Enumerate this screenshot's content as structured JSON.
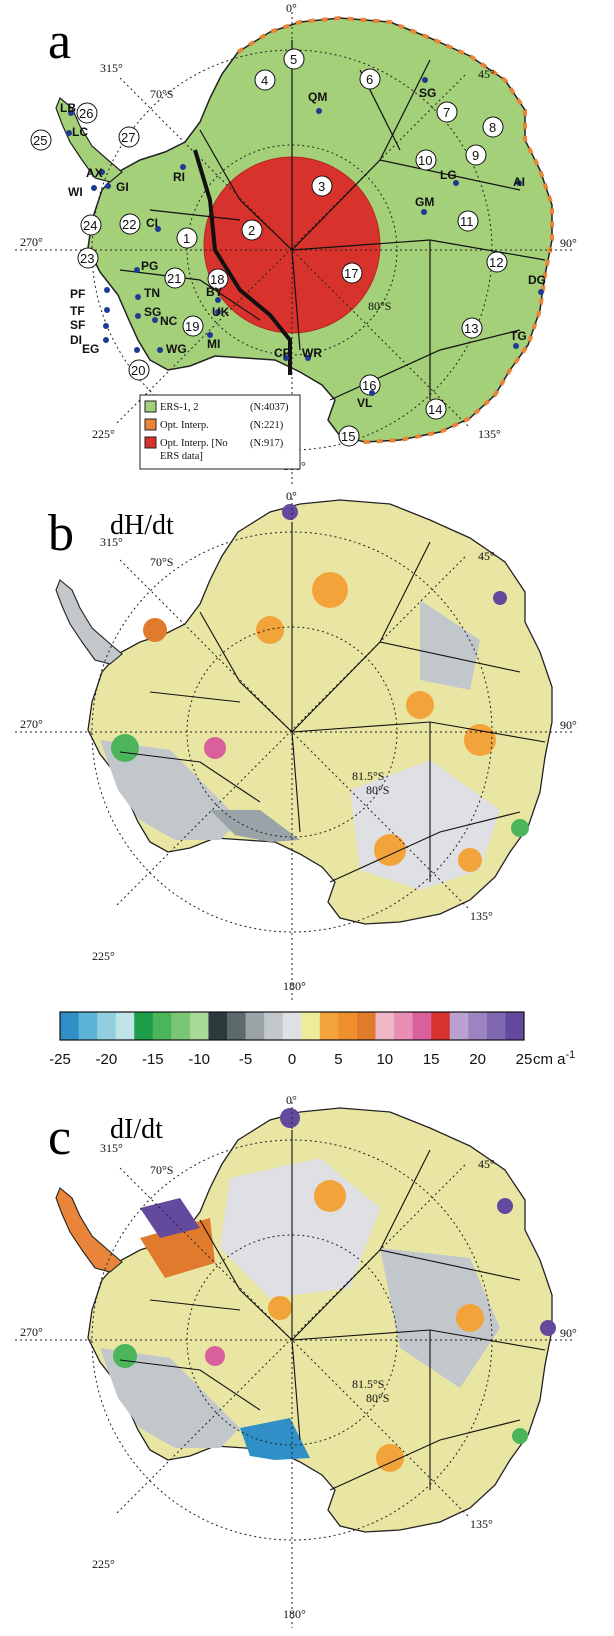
{
  "panels": {
    "a": {
      "label": "a"
    },
    "b": {
      "label": "b",
      "quantity": "dH/dt"
    },
    "c": {
      "label": "c",
      "quantity": "dI/dt"
    }
  },
  "graticule": {
    "deg_0": "0°",
    "deg_45": "45°",
    "deg_90": "90°",
    "deg_135": "135°",
    "deg_180": "180°",
    "deg_225": "225°",
    "deg_270": "270°",
    "deg_315": "315°",
    "lat_70": "70°S",
    "lat_80": "80°S",
    "lat_815": "81.5°S"
  },
  "legend": {
    "items": [
      {
        "label": "ERS-1, 2",
        "count": "(N:4037)",
        "color": "#a4d07a"
      },
      {
        "label": "Opt. Interp.",
        "count": "(N:221)",
        "color": "#e8853a"
      },
      {
        "label": "Opt. Interp. [No",
        "label2": "ERS data]",
        "count": "(N:917)",
        "color": "#d8322c"
      }
    ]
  },
  "basins": [
    "1",
    "2",
    "3",
    "4",
    "5",
    "6",
    "7",
    "8",
    "9",
    "10",
    "11",
    "12",
    "13",
    "14",
    "15",
    "16",
    "17",
    "18",
    "19",
    "20",
    "21",
    "22",
    "23",
    "24",
    "25",
    "26",
    "27"
  ],
  "sites": [
    "QM",
    "SG",
    "LG",
    "AI",
    "GM",
    "DG",
    "TG",
    "LB",
    "LC",
    "AX",
    "GI",
    "WI",
    "RI",
    "CI",
    "PG",
    "PF",
    "TN",
    "TF",
    "SG",
    "SF",
    "DI",
    "NC",
    "EG",
    "WG",
    "BY",
    "UK",
    "MI",
    "CR",
    "WR",
    "VL"
  ],
  "colorbar": {
    "ticks": [
      "-25",
      "-20",
      "-15",
      "-10",
      "-5",
      "0",
      "5",
      "10",
      "15",
      "20",
      "25"
    ],
    "unit": "cm a",
    "unit_sup": "-1",
    "colors": [
      "#2f8fc6",
      "#5bb3d8",
      "#91cfe0",
      "#bfe3e6",
      "#1e9e4a",
      "#4cb55a",
      "#79c674",
      "#a9d996",
      "#2b3a3c",
      "#5d6a6c",
      "#9aa3a8",
      "#c2c7cc",
      "#dfe0e3",
      "#eeeb9a",
      "#f2a33a",
      "#ee8f2e",
      "#e07a2c",
      "#f0b7c8",
      "#e88fb3",
      "#d9609a",
      "#d8322c",
      "#b9a2d2",
      "#9c84c2",
      "#7f67b3",
      "#634a9f"
    ]
  }
}
